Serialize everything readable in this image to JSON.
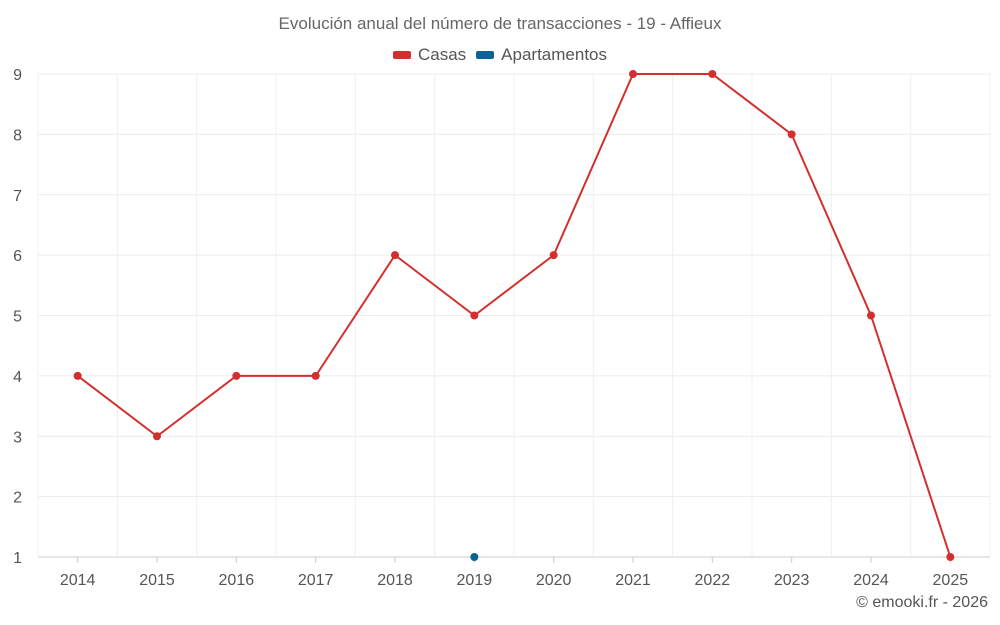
{
  "chart_data": {
    "type": "line",
    "title": "Evolución anual del número de transacciones - 19 - Affieux",
    "categories": [
      "2014",
      "2015",
      "2016",
      "2017",
      "2018",
      "2019",
      "2020",
      "2021",
      "2022",
      "2023",
      "2024",
      "2025"
    ],
    "series": [
      {
        "name": "Casas",
        "color": "#d32f2f",
        "values": [
          4,
          3,
          4,
          4,
          6,
          5,
          6,
          9,
          9,
          8,
          5,
          1
        ]
      },
      {
        "name": "Apartamentos",
        "color": "#0b6395",
        "values": [
          null,
          null,
          null,
          null,
          null,
          1,
          null,
          null,
          null,
          null,
          null,
          null
        ]
      }
    ],
    "yticks": [
      1,
      2,
      3,
      4,
      5,
      6,
      7,
      8,
      9
    ],
    "ylim": [
      1,
      9
    ],
    "grid": true,
    "legend_position": "top-center"
  },
  "credit": "© emooki.fr - 2026"
}
